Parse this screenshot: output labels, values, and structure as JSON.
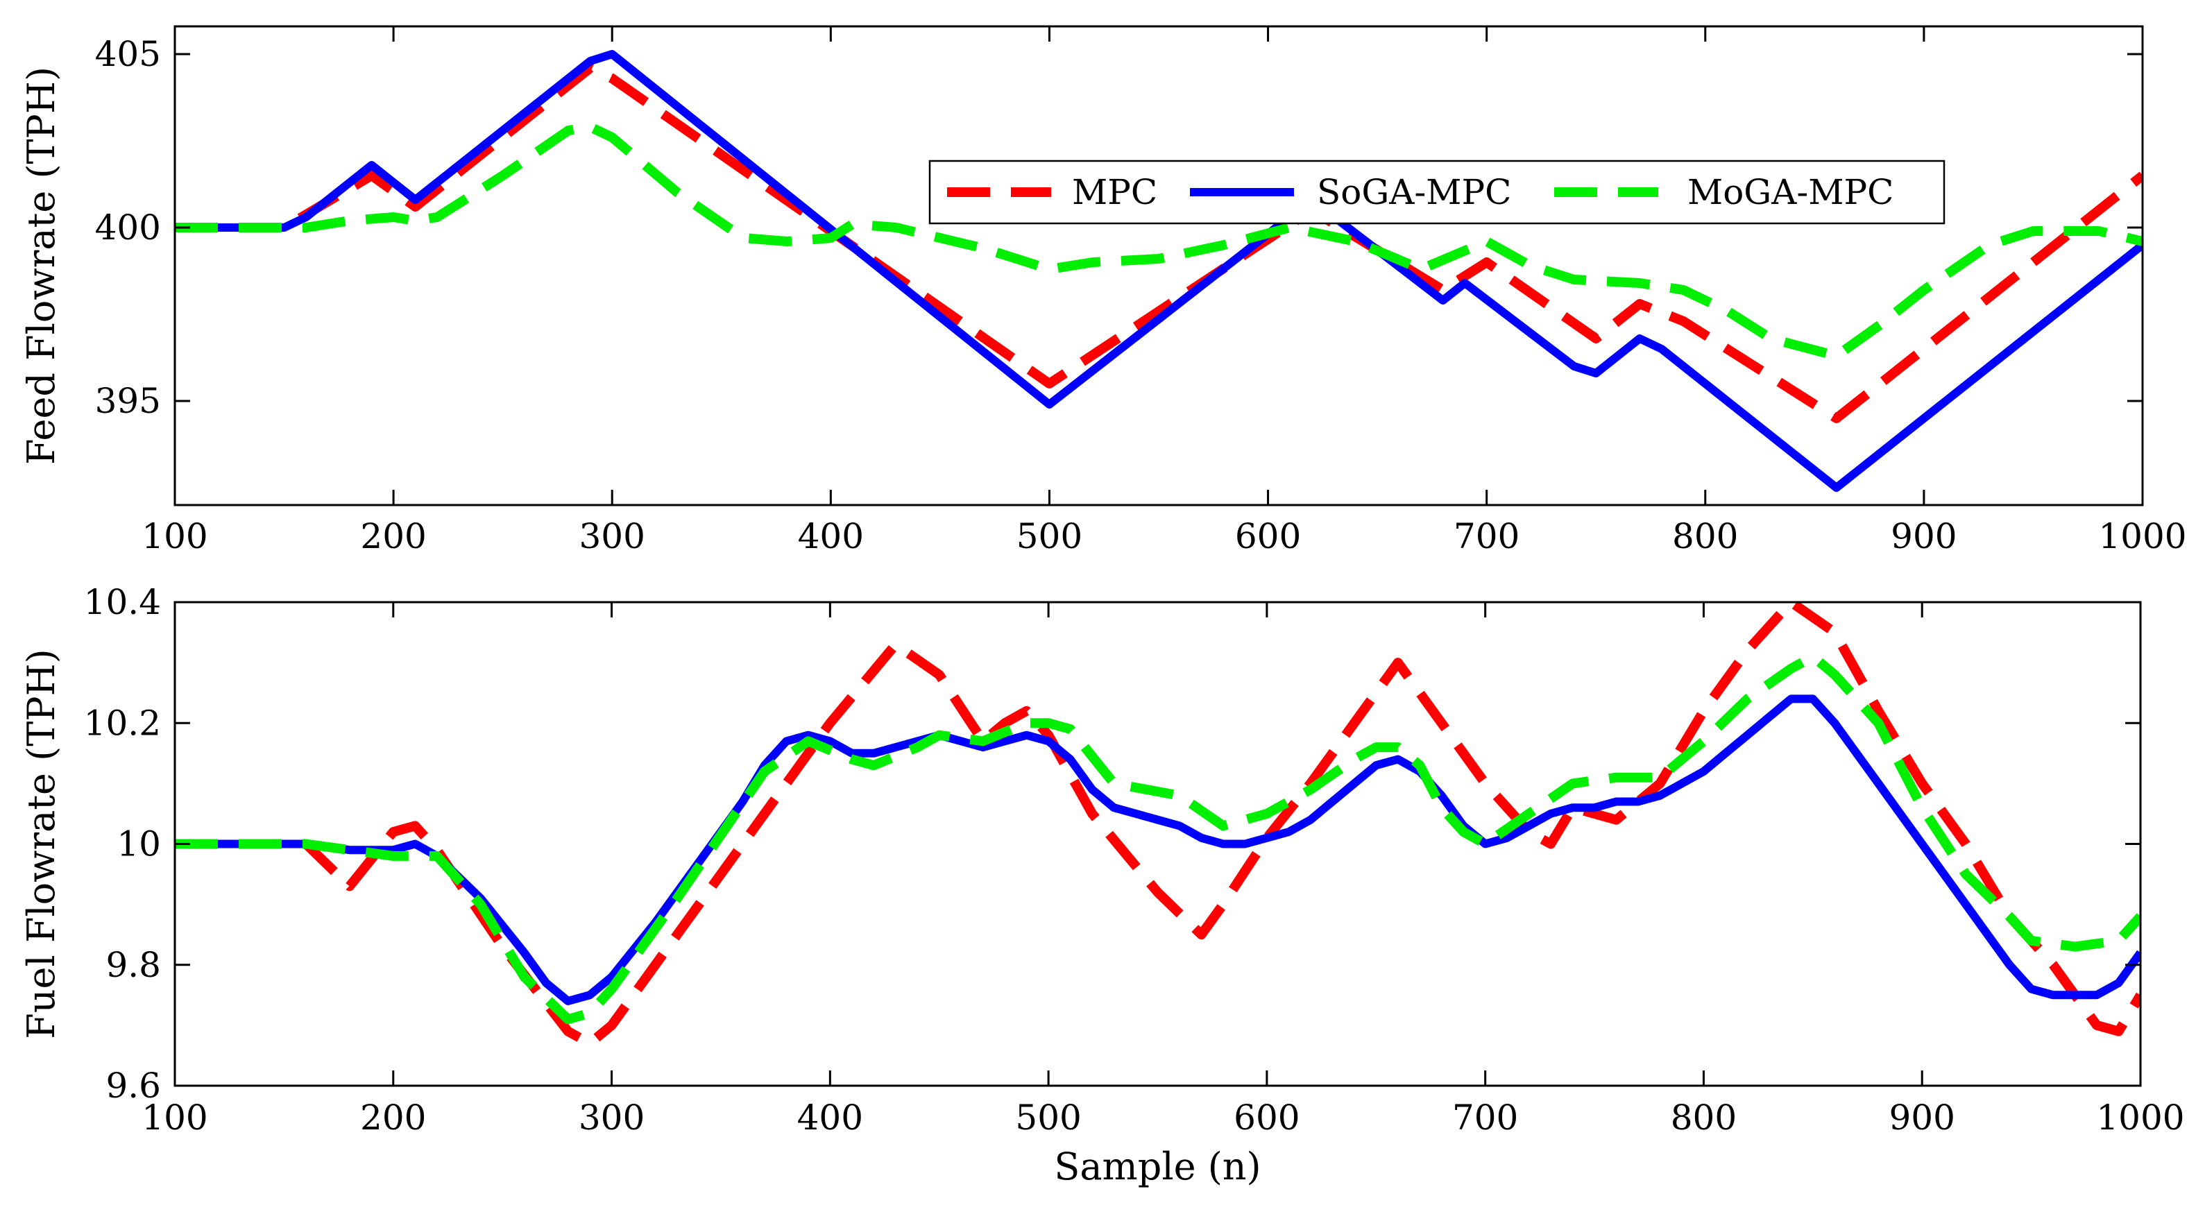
{
  "chart_data": [
    {
      "type": "line",
      "ylabel": "Feed Flowrate (TPH)",
      "xlim": [
        100,
        1000
      ],
      "ylim": [
        392,
        405.8
      ],
      "xticks": [
        100,
        200,
        300,
        400,
        500,
        600,
        700,
        800,
        900,
        1000
      ],
      "xtick_labels": [
        "100",
        "200",
        "300",
        "400",
        "500",
        "600",
        "700",
        "800",
        "900",
        "1000"
      ],
      "yticks": [
        395,
        400,
        405
      ],
      "ytick_labels": [
        "395",
        "400",
        "405"
      ],
      "legend": {
        "placement": "upper-right",
        "orientation": "horizontal",
        "entries": [
          "MPC",
          "SoGA-MPC",
          "MoGA-MPC"
        ]
      },
      "series": [
        {
          "name": "MPC",
          "color": "#ff0000",
          "dash": "dashed",
          "x": [
            100,
            150,
            190,
            210,
            290,
            300,
            500,
            620,
            680,
            700,
            750,
            770,
            790,
            860,
            1000
          ],
          "y": [
            400,
            400,
            401.5,
            400.6,
            404.6,
            404.3,
            395.5,
            400.5,
            398.2,
            399,
            396.8,
            397.8,
            397.3,
            394.5,
            401.5
          ]
        },
        {
          "name": "SoGA-MPC",
          "color": "#0000ff",
          "dash": "solid",
          "x": [
            100,
            150,
            160,
            190,
            210,
            290,
            300,
            500,
            620,
            680,
            690,
            740,
            750,
            770,
            780,
            860,
            1000
          ],
          "y": [
            400,
            400,
            400.3,
            401.8,
            400.8,
            404.8,
            405,
            394.9,
            400.8,
            397.9,
            398.4,
            396,
            395.8,
            396.8,
            396.5,
            392.5,
            399.5
          ]
        },
        {
          "name": "MoGA-MPC",
          "color": "#00ee00",
          "dash": "dashed",
          "x": [
            100,
            160,
            180,
            200,
            210,
            220,
            250,
            280,
            290,
            300,
            330,
            360,
            380,
            400,
            410,
            430,
            470,
            500,
            520,
            550,
            580,
            610,
            640,
            670,
            700,
            720,
            740,
            770,
            790,
            810,
            830,
            860,
            880,
            900,
            930,
            950,
            980,
            1000
          ],
          "y": [
            400,
            400,
            400.2,
            400.3,
            400.2,
            400.3,
            401.5,
            402.8,
            402.9,
            402.6,
            401,
            399.7,
            399.6,
            399.7,
            400.1,
            400,
            399.4,
            398.8,
            399,
            399.1,
            399.5,
            400,
            399.6,
            398.8,
            399.6,
            398.9,
            398.5,
            398.4,
            398.2,
            397.6,
            396.8,
            396.3,
            397.2,
            398.2,
            399.5,
            399.9,
            399.9,
            399.6
          ]
        }
      ]
    },
    {
      "type": "line",
      "xlabel": "Sample (n)",
      "ylabel": "Fuel Flowrate (TPH)",
      "xlim": [
        100,
        1000
      ],
      "ylim": [
        9.6,
        10.4
      ],
      "xticks": [
        100,
        200,
        300,
        400,
        500,
        600,
        700,
        800,
        900,
        1000
      ],
      "xtick_labels": [
        "100",
        "200",
        "300",
        "400",
        "500",
        "600",
        "700",
        "800",
        "900",
        "1000"
      ],
      "yticks": [
        9.6,
        9.8,
        10,
        10.2,
        10.4
      ],
      "ytick_labels": [
        "9.6",
        "9.8",
        "10",
        "10.2",
        "10.4"
      ],
      "series": [
        {
          "name": "MPC",
          "color": "#ff0000",
          "dash": "dashed",
          "x": [
            100,
            160,
            180,
            200,
            210,
            220,
            250,
            280,
            290,
            300,
            330,
            370,
            400,
            430,
            450,
            470,
            480,
            490,
            500,
            520,
            550,
            570,
            580,
            600,
            620,
            650,
            660,
            670,
            700,
            720,
            730,
            740,
            760,
            780,
            800,
            820,
            840,
            860,
            880,
            900,
            920,
            940,
            960,
            980,
            990,
            1000
          ],
          "y": [
            10,
            10,
            9.93,
            10.02,
            10.03,
            9.99,
            9.83,
            9.69,
            9.67,
            9.7,
            9.85,
            10.05,
            10.2,
            10.33,
            10.28,
            10.17,
            10.2,
            10.22,
            10.18,
            10.05,
            9.92,
            9.85,
            9.9,
            10.01,
            10.1,
            10.25,
            10.3,
            10.25,
            10.1,
            10.02,
            10,
            10.06,
            10.04,
            10.1,
            10.22,
            10.32,
            10.4,
            10.35,
            10.22,
            10.1,
            10,
            9.88,
            9.8,
            9.7,
            9.69,
            9.75
          ]
        },
        {
          "name": "SoGA-MPC",
          "color": "#0000ff",
          "dash": "solid",
          "x": [
            100,
            160,
            180,
            200,
            210,
            220,
            240,
            260,
            270,
            280,
            290,
            300,
            320,
            340,
            360,
            370,
            380,
            390,
            400,
            410,
            420,
            440,
            450,
            460,
            470,
            480,
            490,
            500,
            510,
            520,
            530,
            540,
            550,
            560,
            570,
            580,
            590,
            600,
            610,
            620,
            630,
            640,
            650,
            660,
            670,
            680,
            690,
            700,
            710,
            720,
            730,
            740,
            750,
            760,
            770,
            780,
            790,
            800,
            810,
            820,
            830,
            840,
            850,
            860,
            880,
            900,
            920,
            940,
            950,
            960,
            970,
            980,
            990,
            1000
          ],
          "y": [
            10,
            10,
            9.99,
            9.99,
            10,
            9.98,
            9.91,
            9.82,
            9.77,
            9.74,
            9.75,
            9.78,
            9.87,
            9.97,
            10.07,
            10.13,
            10.17,
            10.18,
            10.17,
            10.15,
            10.15,
            10.17,
            10.18,
            10.17,
            10.16,
            10.17,
            10.18,
            10.17,
            10.14,
            10.09,
            10.06,
            10.05,
            10.04,
            10.03,
            10.01,
            10,
            10,
            10.01,
            10.02,
            10.04,
            10.07,
            10.1,
            10.13,
            10.14,
            10.12,
            10.08,
            10.03,
            10,
            10.01,
            10.03,
            10.05,
            10.06,
            10.06,
            10.07,
            10.07,
            10.08,
            10.1,
            10.12,
            10.15,
            10.18,
            10.21,
            10.24,
            10.24,
            10.2,
            10.1,
            10,
            9.9,
            9.8,
            9.76,
            9.75,
            9.75,
            9.75,
            9.77,
            9.82
          ]
        },
        {
          "name": "MoGA-MPC",
          "color": "#00ee00",
          "dash": "dashed",
          "x": [
            100,
            160,
            180,
            200,
            220,
            240,
            260,
            280,
            290,
            300,
            330,
            370,
            390,
            410,
            420,
            440,
            450,
            470,
            490,
            500,
            510,
            530,
            560,
            580,
            600,
            620,
            640,
            650,
            660,
            670,
            680,
            690,
            700,
            720,
            740,
            760,
            780,
            800,
            820,
            840,
            850,
            860,
            880,
            900,
            920,
            940,
            950,
            970,
            990,
            1000
          ],
          "y": [
            10,
            10,
            9.99,
            9.98,
            9.98,
            9.9,
            9.78,
            9.71,
            9.72,
            9.76,
            9.91,
            10.12,
            10.17,
            10.14,
            10.13,
            10.16,
            10.18,
            10.17,
            10.2,
            10.2,
            10.19,
            10.1,
            10.08,
            10.03,
            10.05,
            10.09,
            10.14,
            10.16,
            10.16,
            10.13,
            10.06,
            10.02,
            10,
            10.05,
            10.1,
            10.11,
            10.11,
            10.17,
            10.24,
            10.29,
            10.31,
            10.28,
            10.2,
            10.06,
            9.95,
            9.88,
            9.84,
            9.83,
            9.84,
            9.88
          ]
        }
      ]
    }
  ]
}
